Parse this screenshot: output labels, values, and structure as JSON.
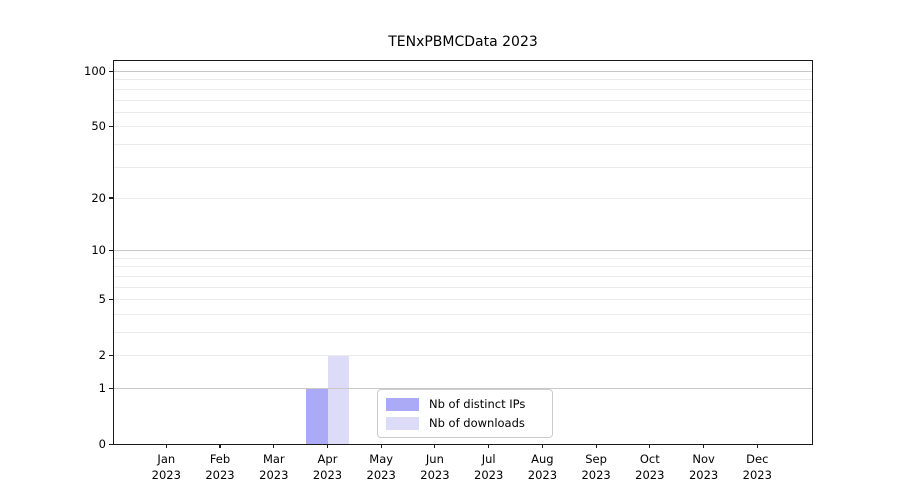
{
  "chart_data": {
    "type": "bar",
    "title": "TENxPBMCData 2023",
    "categories": [
      "Jan 2023",
      "Feb 2023",
      "Mar 2023",
      "Apr 2023",
      "May 2023",
      "Jun 2023",
      "Jul 2023",
      "Aug 2023",
      "Sep 2023",
      "Oct 2023",
      "Nov 2023",
      "Dec 2023"
    ],
    "x_tick_month": [
      "Jan",
      "Feb",
      "Mar",
      "Apr",
      "May",
      "Jun",
      "Jul",
      "Aug",
      "Sep",
      "Oct",
      "Nov",
      "Dec"
    ],
    "x_tick_year": "2023",
    "series": [
      {
        "name": "Nb of distinct IPs",
        "color": "#aaaaf6",
        "values": [
          0,
          0,
          0,
          1,
          0,
          0,
          0,
          0,
          0,
          0,
          0,
          0
        ]
      },
      {
        "name": "Nb of downloads",
        "color": "#dcdcf9",
        "values": [
          0,
          0,
          0,
          2,
          0,
          0,
          0,
          0,
          0,
          0,
          0,
          0
        ]
      }
    ],
    "y_scale": "log1p",
    "ylim": [
      0,
      113
    ],
    "y_labeled_ticks": [
      100,
      50,
      20,
      10,
      5,
      2,
      1,
      0
    ],
    "y_decade_gridlines": [
      1,
      10,
      100
    ],
    "y_minor_gridlines": [
      2,
      3,
      4,
      5,
      6,
      7,
      8,
      9,
      20,
      30,
      40,
      50,
      60,
      70,
      80,
      90
    ],
    "grid": "horizontal",
    "legend_position": "lower-center-inside"
  },
  "colors": {
    "decade_grid": "#c9c9c9",
    "minor_grid": "#ebebeb",
    "axis": "#1a1a1a",
    "text": "#000000",
    "legend_border": "#cccccc",
    "background": "#ffffff"
  }
}
